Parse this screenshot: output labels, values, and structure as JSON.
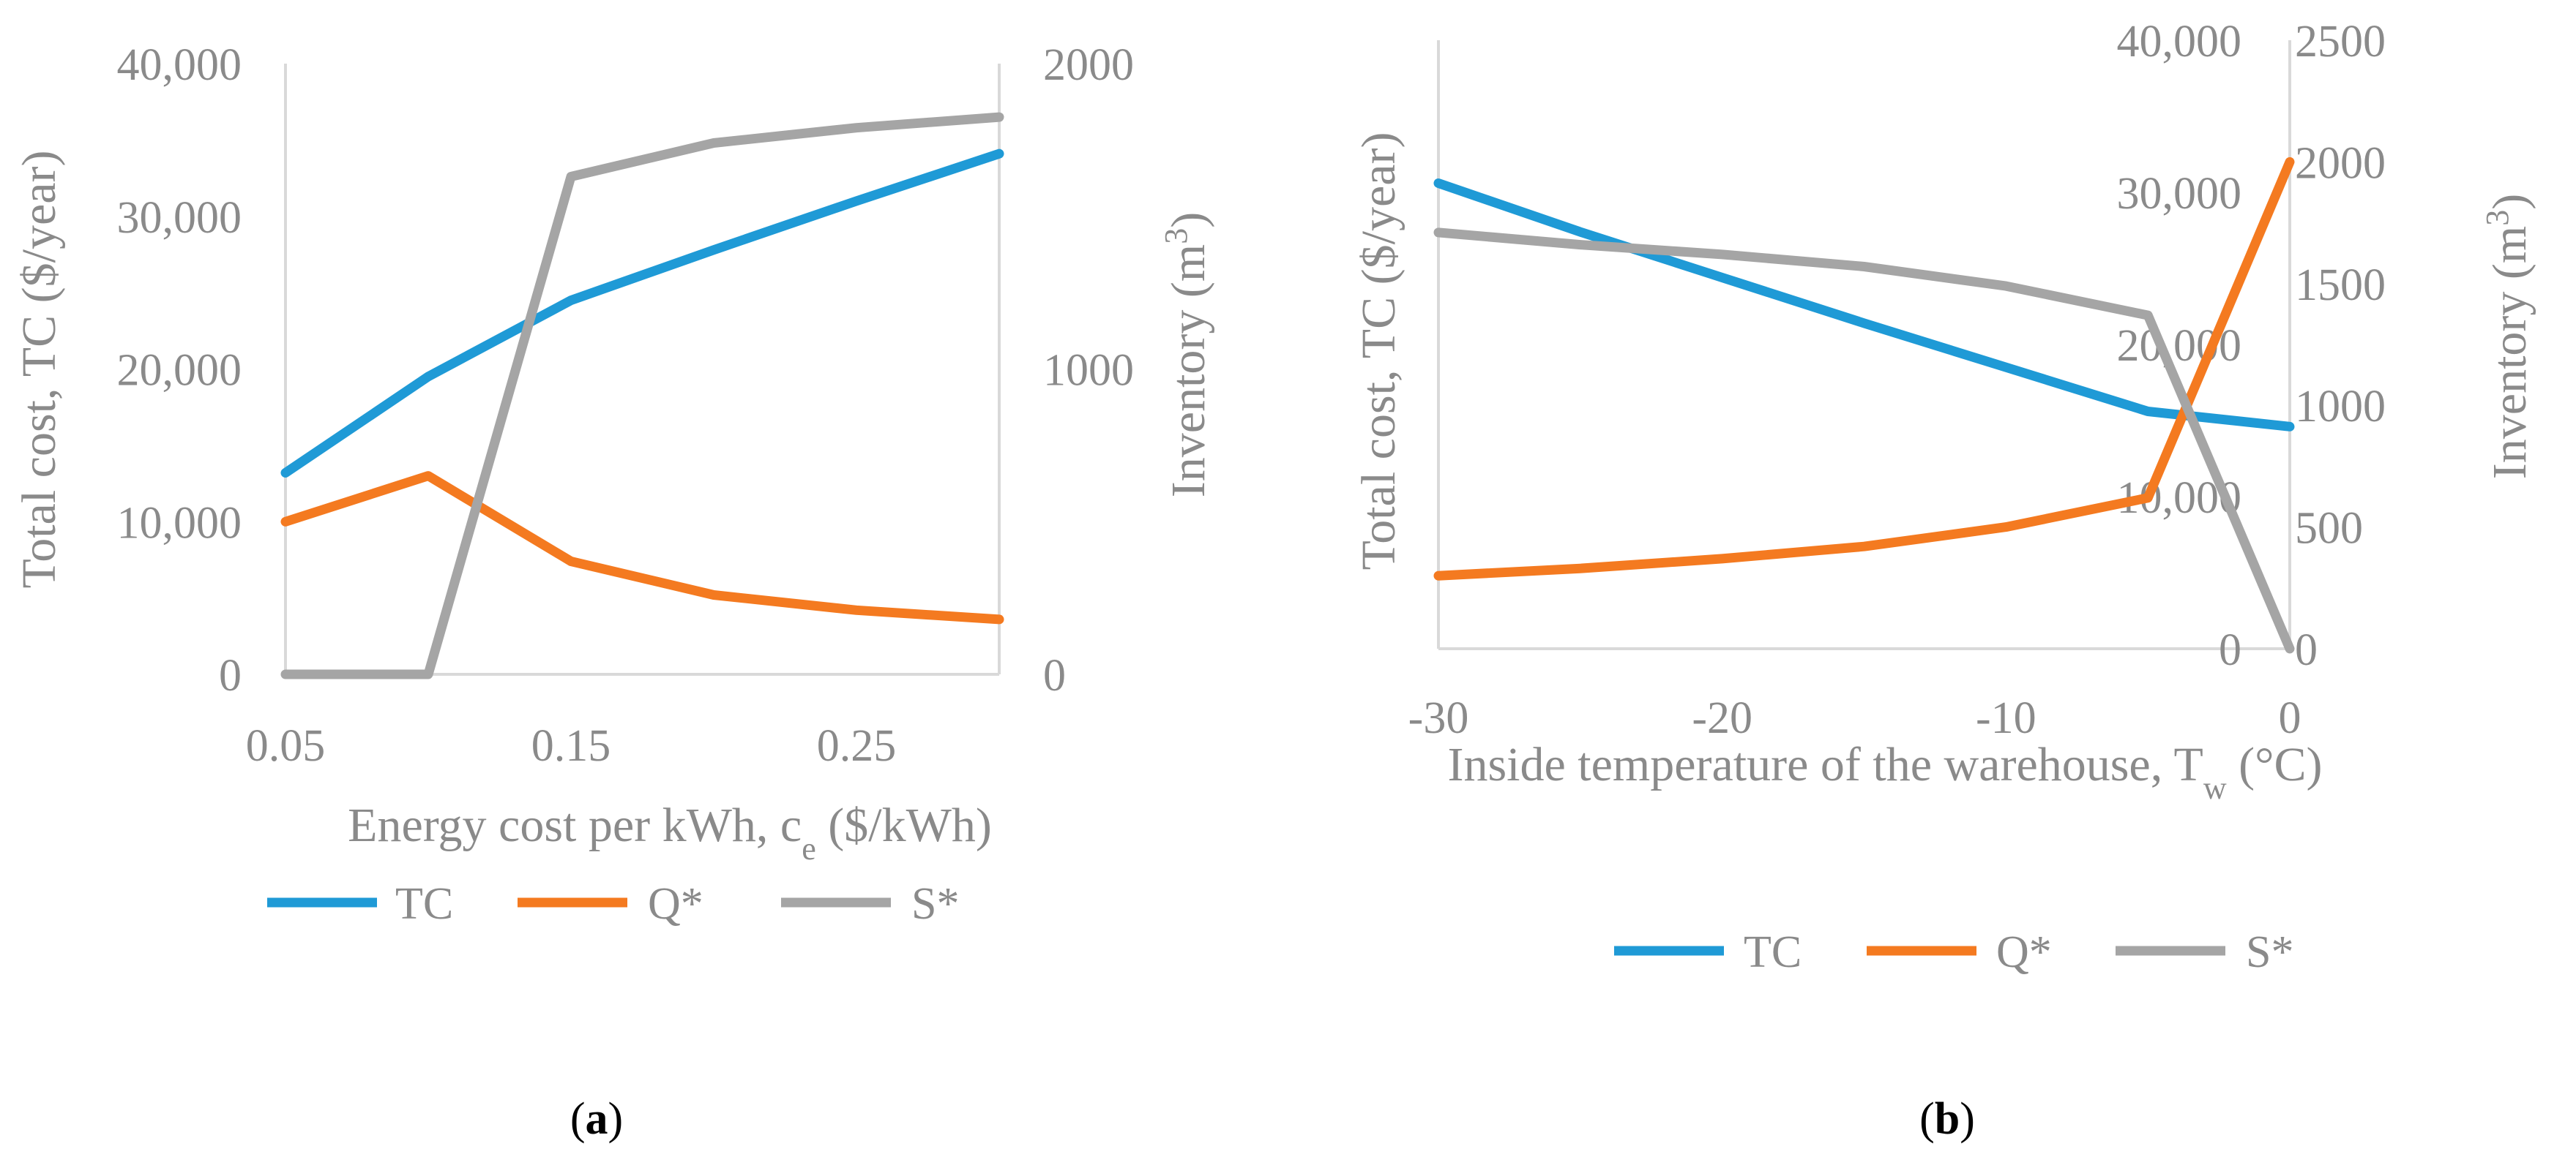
{
  "chart_data": [
    {
      "type": "line",
      "panel_label": "a",
      "x": [
        0.05,
        0.1,
        0.15,
        0.2,
        0.25,
        0.3
      ],
      "x_tick_labels": [
        "0.05",
        "0.15",
        "0.25"
      ],
      "x_tick_values": [
        0.05,
        0.15,
        0.25
      ],
      "xlim": [
        0.05,
        0.3
      ],
      "xlabel": "Energy cost per kWh, c",
      "xlabel_sub": "e",
      "xlabel_rest": " ($/kWh)",
      "ylabel": "Total cost, TC ($/year)",
      "ylim": [
        0,
        40000
      ],
      "y_tick_labels": [
        "0",
        "10,000",
        "20,000",
        "30,000",
        "40,000"
      ],
      "y_tick_values": [
        0,
        10000,
        20000,
        30000,
        40000
      ],
      "y2label": "Inventory (m",
      "y2label_sup": "3",
      "y2label_close": ")",
      "y2lim": [
        0,
        2000
      ],
      "y2_tick_labels": [
        "0",
        "1000",
        "2000"
      ],
      "y2_tick_values": [
        0,
        1000,
        2000
      ],
      "series": [
        {
          "name": "TC",
          "axis": "left",
          "color": "#1f9ad6",
          "values": [
            13200,
            19500,
            24500,
            27800,
            31000,
            34100
          ]
        },
        {
          "name": "Q*",
          "axis": "right",
          "color": "#f47a20",
          "values": [
            500,
            650,
            370,
            260,
            210,
            180
          ]
        },
        {
          "name": "S*",
          "axis": "right",
          "color": "#a5a5a5",
          "values": [
            0,
            0,
            1630,
            1740,
            1790,
            1825
          ]
        }
      ],
      "legend": [
        "TC",
        "Q*",
        "S*"
      ],
      "legend_position": "bottom"
    },
    {
      "type": "line",
      "panel_label": "b",
      "x": [
        -30,
        -25,
        -20,
        -15,
        -10,
        -5,
        0
      ],
      "x_tick_labels": [
        "-30",
        "-20",
        "-10",
        "0"
      ],
      "x_tick_values": [
        -30,
        -20,
        -10,
        0
      ],
      "xlim": [
        -30,
        0
      ],
      "xlabel": "Inside temperature of the warehouse, T",
      "xlabel_sub": "w",
      "xlabel_rest": " (°C)",
      "ylabel": "Total cost, TC ($/year)",
      "ylim": [
        0,
        40000
      ],
      "y_tick_labels": [
        "0",
        "10,000",
        "20,000",
        "30,000",
        "40,000"
      ],
      "y_tick_values": [
        0,
        10000,
        20000,
        30000,
        40000
      ],
      "y2label": "Inventory (m",
      "y2label_sup": "3",
      "y2label_close": ")",
      "y2lim": [
        0,
        2500
      ],
      "y2_tick_labels": [
        "0",
        "500",
        "1000",
        "1500",
        "2000",
        "2500"
      ],
      "y2_tick_values": [
        0,
        500,
        1000,
        1500,
        2000,
        2500
      ],
      "series": [
        {
          "name": "TC",
          "axis": "left",
          "color": "#1f9ad6",
          "values": [
            30600,
            27400,
            24400,
            21400,
            18500,
            15600,
            14600
          ]
        },
        {
          "name": "Q*",
          "axis": "right",
          "color": "#f47a20",
          "values": [
            300,
            330,
            370,
            420,
            500,
            620,
            2000
          ]
        },
        {
          "name": "S*",
          "axis": "right",
          "color": "#a5a5a5",
          "values": [
            1710,
            1660,
            1620,
            1570,
            1490,
            1370,
            0
          ]
        }
      ],
      "legend": [
        "TC",
        "Q*",
        "S*"
      ],
      "legend_position": "bottom"
    }
  ]
}
